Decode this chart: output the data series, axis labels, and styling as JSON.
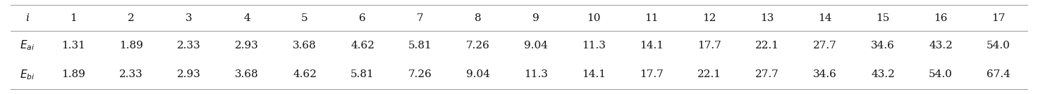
{
  "headers": [
    "i",
    "1",
    "2",
    "3",
    "4",
    "5",
    "6",
    "7",
    "8",
    "9",
    "10",
    "11",
    "12",
    "13",
    "14",
    "15",
    "16",
    "17"
  ],
  "row1_label": "$E_{ai}$",
  "row1_values": [
    "1.31",
    "1.89",
    "2.33",
    "2.93",
    "3.68",
    "4.62",
    "5.81",
    "7.26",
    "9.04",
    "11.3",
    "14.1",
    "17.7",
    "22.1",
    "27.7",
    "34.6",
    "43.2",
    "54.0"
  ],
  "row2_label": "$E_{bi}$",
  "row2_values": [
    "1.89",
    "2.33",
    "2.93",
    "3.68",
    "4.62",
    "5.81",
    "7.26",
    "9.04",
    "11.3",
    "14.1",
    "17.7",
    "22.1",
    "27.7",
    "34.6",
    "43.2",
    "54.0",
    "67.4"
  ],
  "border_color": "#999999",
  "text_color": "#111111",
  "font_size": 11.0,
  "fig_width": 14.72,
  "fig_height": 1.34,
  "dpi": 100
}
